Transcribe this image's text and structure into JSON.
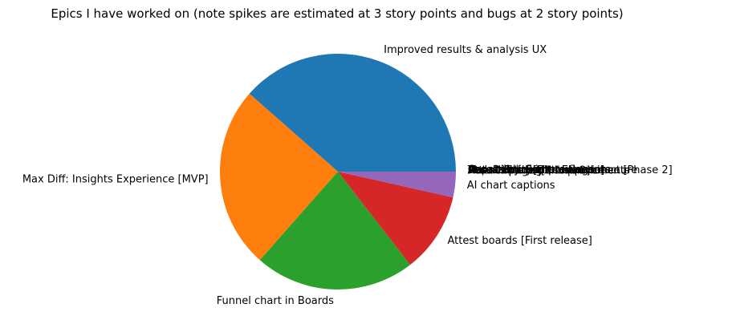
{
  "chart_data": {
    "type": "pie",
    "title": "Epics I have worked on (note spikes are estimated at 3 story points and bugs at 2 story points)",
    "start_angle_deg": 0,
    "direction": "counterclockwise",
    "slices": [
      {
        "label": "Improved results & analysis UX",
        "value": 38.5,
        "color": "#1f77b4"
      },
      {
        "label": "Max Diff: Insights Experience [MVP]",
        "value": 25.0,
        "color": "#ff7f0e"
      },
      {
        "label": "Funnel chart in Boards",
        "value": 22.0,
        "color": "#2ca02c"
      },
      {
        "label": "Attest boards [First release]",
        "value": 11.0,
        "color": "#d62728"
      },
      {
        "label": "AI chart captions",
        "value": 3.5,
        "color": "#9467bd"
      }
    ],
    "overlapping_labels": [
      "Attest boards [Phase 2]",
      "Max Diff: Insights Experience [Phase 2]",
      "Accessibility improvements",
      "Results page performance",
      "Data export [First release]",
      "Capability: Feature flags",
      "Result filters UX improvements",
      "Tech debt: Frontend architecture"
    ]
  }
}
